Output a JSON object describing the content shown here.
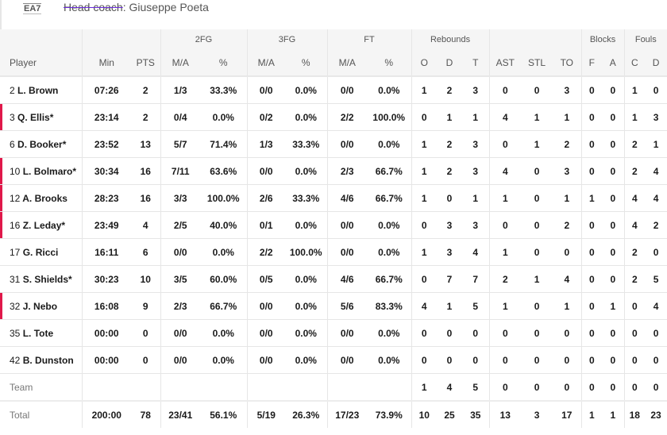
{
  "header": {
    "logo": "EA7",
    "coach_label": "Head coach",
    "coach_name": "Giuseppe Poeta"
  },
  "colors": {
    "on_court_marker": "#e0184a"
  },
  "groups": {
    "fg2": "2FG",
    "fg3": "3FG",
    "ft": "FT",
    "reb": "Rebounds",
    "blk": "Blocks",
    "fouls": "Fouls"
  },
  "columns": [
    "Player",
    "Min",
    "PTS",
    "M/A",
    "%",
    "M/A",
    "%",
    "M/A",
    "%",
    "O",
    "D",
    "T",
    "AST",
    "STL",
    "TO",
    "F",
    "A",
    "C",
    "D"
  ],
  "rows": [
    {
      "num": "2",
      "name": "L. Brown",
      "on": false,
      "s": [
        "07:26",
        "2",
        "1/3",
        "33.3%",
        "0/0",
        "0.0%",
        "0/0",
        "0.0%",
        "1",
        "2",
        "3",
        "0",
        "0",
        "3",
        "0",
        "0",
        "1",
        "0"
      ]
    },
    {
      "num": "3",
      "name": "Q. Ellis*",
      "on": true,
      "s": [
        "23:14",
        "2",
        "0/4",
        "0.0%",
        "0/2",
        "0.0%",
        "2/2",
        "100.0%",
        "0",
        "1",
        "1",
        "4",
        "1",
        "1",
        "0",
        "0",
        "1",
        "3"
      ]
    },
    {
      "num": "6",
      "name": "D. Booker*",
      "on": false,
      "s": [
        "23:52",
        "13",
        "5/7",
        "71.4%",
        "1/3",
        "33.3%",
        "0/0",
        "0.0%",
        "1",
        "2",
        "3",
        "0",
        "1",
        "2",
        "0",
        "0",
        "2",
        "1"
      ]
    },
    {
      "num": "10",
      "name": "L. Bolmaro*",
      "on": true,
      "s": [
        "30:34",
        "16",
        "7/11",
        "63.6%",
        "0/0",
        "0.0%",
        "2/3",
        "66.7%",
        "1",
        "2",
        "3",
        "4",
        "0",
        "3",
        "0",
        "0",
        "2",
        "4"
      ]
    },
    {
      "num": "12",
      "name": "A. Brooks",
      "on": true,
      "s": [
        "28:23",
        "16",
        "3/3",
        "100.0%",
        "2/6",
        "33.3%",
        "4/6",
        "66.7%",
        "1",
        "0",
        "1",
        "1",
        "0",
        "1",
        "1",
        "0",
        "4",
        "4"
      ]
    },
    {
      "num": "16",
      "name": "Z. Leday*",
      "on": true,
      "s": [
        "23:49",
        "4",
        "2/5",
        "40.0%",
        "0/1",
        "0.0%",
        "0/0",
        "0.0%",
        "0",
        "3",
        "3",
        "0",
        "0",
        "2",
        "0",
        "0",
        "4",
        "2"
      ]
    },
    {
      "num": "17",
      "name": "G. Ricci",
      "on": false,
      "s": [
        "16:11",
        "6",
        "0/0",
        "0.0%",
        "2/2",
        "100.0%",
        "0/0",
        "0.0%",
        "1",
        "3",
        "4",
        "1",
        "0",
        "0",
        "0",
        "0",
        "2",
        "0"
      ]
    },
    {
      "num": "31",
      "name": "S. Shields*",
      "on": false,
      "s": [
        "30:23",
        "10",
        "3/5",
        "60.0%",
        "0/5",
        "0.0%",
        "4/6",
        "66.7%",
        "0",
        "7",
        "7",
        "2",
        "1",
        "4",
        "0",
        "0",
        "2",
        "5"
      ]
    },
    {
      "num": "32",
      "name": "J. Nebo",
      "on": true,
      "s": [
        "16:08",
        "9",
        "2/3",
        "66.7%",
        "0/0",
        "0.0%",
        "5/6",
        "83.3%",
        "4",
        "1",
        "5",
        "1",
        "0",
        "1",
        "0",
        "1",
        "0",
        "4"
      ]
    },
    {
      "num": "35",
      "name": "L. Tote",
      "on": false,
      "s": [
        "00:00",
        "0",
        "0/0",
        "0.0%",
        "0/0",
        "0.0%",
        "0/0",
        "0.0%",
        "0",
        "0",
        "0",
        "0",
        "0",
        "0",
        "0",
        "0",
        "0",
        "0"
      ]
    },
    {
      "num": "42",
      "name": "B. Dunston",
      "on": false,
      "s": [
        "00:00",
        "0",
        "0/0",
        "0.0%",
        "0/0",
        "0.0%",
        "0/0",
        "0.0%",
        "0",
        "0",
        "0",
        "0",
        "0",
        "0",
        "0",
        "0",
        "0",
        "0"
      ]
    }
  ],
  "team": {
    "label": "Team",
    "s": [
      "",
      "",
      "",
      "",
      "",
      "",
      "",
      "",
      "1",
      "4",
      "5",
      "0",
      "0",
      "0",
      "0",
      "0",
      "0",
      "0"
    ]
  },
  "total": {
    "label": "Total",
    "s": [
      "200:00",
      "78",
      "23/41",
      "56.1%",
      "5/19",
      "26.3%",
      "17/23",
      "73.9%",
      "10",
      "25",
      "35",
      "13",
      "3",
      "17",
      "1",
      "1",
      "18",
      "23"
    ]
  }
}
